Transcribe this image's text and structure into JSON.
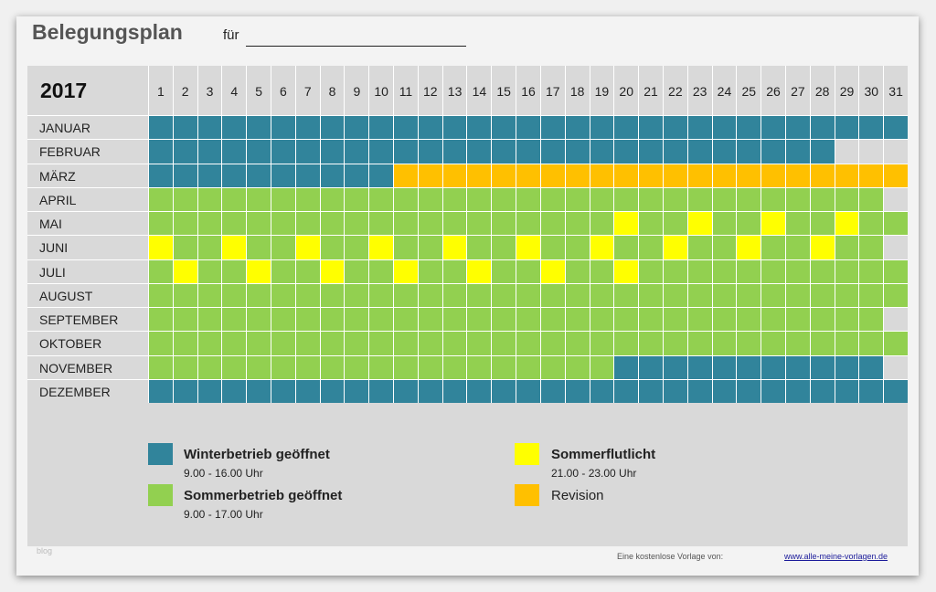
{
  "title": "Belegungsplan",
  "for_label": "für",
  "year": "2017",
  "colors": {
    "W": "#31849b",
    "S": "#92d050",
    "F": "#ffff00",
    "R": "#ffc000",
    "X": "#d9d9d9"
  },
  "days": [
    "1",
    "2",
    "3",
    "4",
    "5",
    "6",
    "7",
    "8",
    "9",
    "10",
    "11",
    "12",
    "13",
    "14",
    "15",
    "16",
    "17",
    "18",
    "19",
    "20",
    "21",
    "22",
    "23",
    "24",
    "25",
    "26",
    "27",
    "28",
    "29",
    "30",
    "31"
  ],
  "months": [
    {
      "name": "JANUAR",
      "cells": "WWWWWWWWWWWWWWWWWWWWWWWWWWWWWWW"
    },
    {
      "name": "FEBRUAR",
      "cells": "WWWWWWWWWWWWWWWWWWWWWWWWWWWWXXX"
    },
    {
      "name": "MÄRZ",
      "cells": "WWWWWWWWWWRRRRRRRRRRRRRRRRRRRRR"
    },
    {
      "name": "APRIL",
      "cells": "SSSSSSSSSSSSSSSSSSSSSSSSSSSSSSX"
    },
    {
      "name": "MAI",
      "cells": "SSSSSSSSSSSSSSSSSSSFSSFSSFSSFSS"
    },
    {
      "name": "JUNI",
      "cells": "FSSFSSFSSFSSFSSFSSFSSFSSFSSFSSX"
    },
    {
      "name": "JULI",
      "cells": "SFSSFSSFSSFSSFSSFSSFSSSSSSSSSSS"
    },
    {
      "name": "AUGUST",
      "cells": "SSSSSSSSSSSSSSSSSSSSSSSSSSSSSSS"
    },
    {
      "name": "SEPTEMBER",
      "cells": "SSSSSSSSSSSSSSSSSSSSSSSSSSSSSSX"
    },
    {
      "name": "OKTOBER",
      "cells": "SSSSSSSSSSSSSSSSSSSSSSSSSSSSSSS"
    },
    {
      "name": "NOVEMBER",
      "cells": "SSSSSSSSSSSSSSSSSSSWWWWWWWWWWWX"
    },
    {
      "name": "DEZEMBER",
      "cells": "WWWWWWWWWWWWWWWWWWWWWWWWWWWWWWW"
    }
  ],
  "legend": {
    "winter": {
      "label": "Winterbetrieb geöffnet",
      "hours": "9.00 - 16.00 Uhr"
    },
    "summer": {
      "label": "Sommerbetrieb geöffnet",
      "hours": "9.00 - 17.00 Uhr"
    },
    "flood": {
      "label": "Sommerflutlicht",
      "hours": "21.00 - 23.00 Uhr"
    },
    "revision": {
      "label": "Revision"
    }
  },
  "footer": {
    "blog": "blog",
    "credit": "Eine kostenlose Vorlage von:",
    "link": "www.alle-meine-vorlagen.de"
  }
}
